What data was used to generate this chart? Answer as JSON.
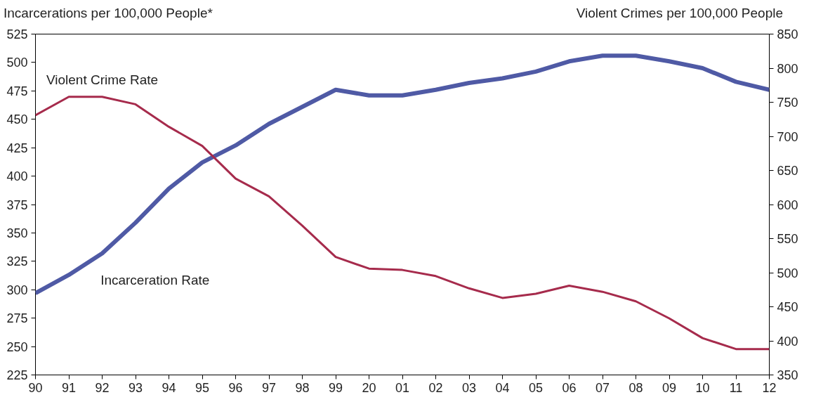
{
  "chart_data": {
    "type": "line",
    "ylabel": "Incarcerations per 100,000 People*",
    "y2label": "Violent Crimes per 100,000 People",
    "categories": [
      "90",
      "91",
      "92",
      "93",
      "94",
      "95",
      "96",
      "97",
      "98",
      "99",
      "20",
      "01",
      "02",
      "03",
      "04",
      "05",
      "06",
      "07",
      "08",
      "09",
      "10",
      "11",
      "12"
    ],
    "series": [
      {
        "name": "Incarceration Rate",
        "color": "#4f5aa5",
        "values": [
          297,
          313,
          332,
          359,
          389,
          412,
          427,
          446,
          461,
          476,
          471,
          471,
          476,
          482,
          486,
          492,
          501,
          506,
          506,
          501,
          495,
          483,
          476
        ]
      },
      {
        "name": "Violent Crime Rate",
        "color": "#a62b4c",
        "axis": "y2",
        "values": [
          731,
          758,
          758,
          747,
          714,
          686,
          638,
          612,
          569,
          523,
          506,
          504,
          495,
          477,
          463,
          469,
          481,
          472,
          458,
          433,
          404,
          388,
          388
        ]
      }
    ],
    "ylim": [
      225,
      525
    ],
    "yticks": [
      225,
      250,
      275,
      300,
      325,
      350,
      375,
      400,
      425,
      450,
      475,
      500,
      525
    ],
    "y2lim": [
      350,
      850
    ],
    "y2ticks": [
      350,
      400,
      450,
      500,
      550,
      600,
      650,
      700,
      750,
      800,
      850
    ],
    "grid": false,
    "marker": "none",
    "line_style": "solid"
  }
}
